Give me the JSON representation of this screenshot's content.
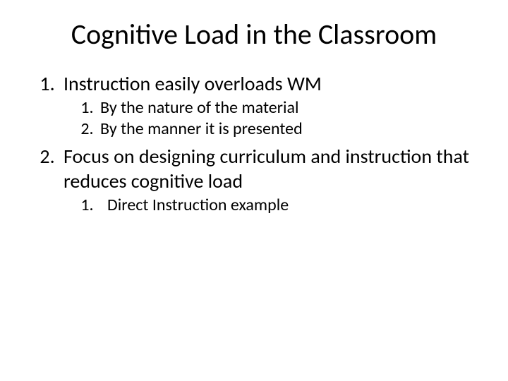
{
  "slide": {
    "title": "Cognitive Load in the Classroom",
    "title_fontsize": 40,
    "title_color": "#000000",
    "background_color": "#ffffff",
    "level1_fontsize": 28,
    "level2_fontsize": 24,
    "font_family": "Calibri",
    "items": [
      {
        "text": "Instruction easily overloads WM",
        "children": [
          {
            "text": "By the nature of the material"
          },
          {
            "text": "By the manner it is presented"
          }
        ]
      },
      {
        "text": "Focus on designing curriculum and instruction that reduces cognitive load",
        "children": [
          {
            "text": "Direct Instruction example"
          }
        ]
      }
    ]
  }
}
